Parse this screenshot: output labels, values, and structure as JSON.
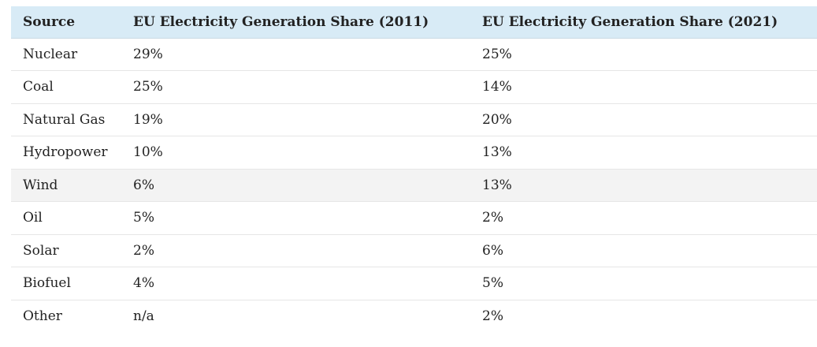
{
  "table": {
    "headers": [
      "Source",
      "EU Electricity Generation Share (2011)",
      "EU Electricity Generation Share (2021)"
    ],
    "rows": [
      [
        "Nuclear",
        "29%",
        "25%"
      ],
      [
        "Coal",
        "25%",
        "14%"
      ],
      [
        "Natural Gas",
        "19%",
        "20%"
      ],
      [
        "Hydropower",
        "10%",
        "13%"
      ],
      [
        "Wind",
        "6%",
        "13%"
      ],
      [
        "Oil",
        "5%",
        "2%"
      ],
      [
        "Solar",
        "2%",
        "6%"
      ],
      [
        "Biofuel",
        "4%",
        "5%"
      ],
      [
        "Other",
        "n/a",
        "2%"
      ]
    ],
    "highlighted_row": "Wind",
    "colors": {
      "header_bg": "#d8ebf6",
      "highlight_bg": "#f3f3f3",
      "row_border": "#e6e6e6",
      "text": "#222222"
    }
  }
}
